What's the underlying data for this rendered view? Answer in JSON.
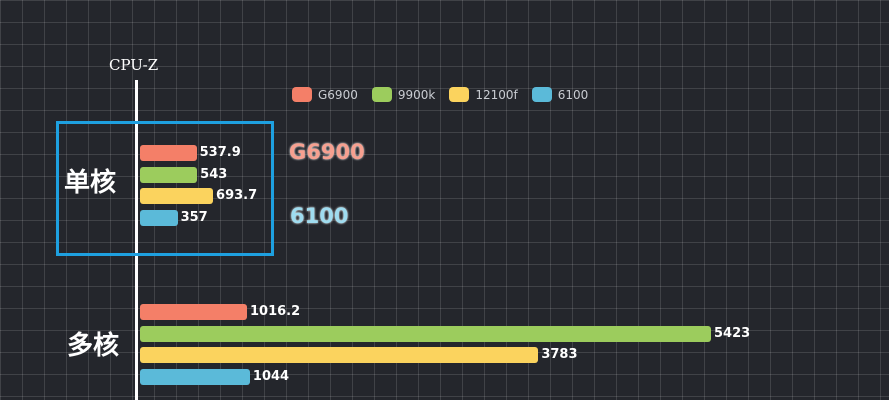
{
  "chart_data": {
    "type": "bar",
    "orientation": "horizontal",
    "axis_title": "CPU-Z",
    "categories": [
      "单核",
      "多核"
    ],
    "series": [
      {
        "name": "G6900",
        "color": "#f47f68",
        "values": [
          537.9,
          1016.2
        ],
        "labels": [
          "537.9",
          "1016.2"
        ]
      },
      {
        "name": "9900k",
        "color": "#9ccc5d",
        "values": [
          543,
          5423
        ],
        "labels": [
          "543",
          "5423"
        ]
      },
      {
        "name": "12100f",
        "color": "#fbd35e",
        "values": [
          693.7,
          3783
        ],
        "labels": [
          "693.7",
          "3783"
        ]
      },
      {
        "name": "6100",
        "color": "#5bbad9",
        "values": [
          357,
          1044
        ],
        "labels": [
          "357",
          "1044"
        ]
      }
    ],
    "annotations": [
      "G6900",
      "6100"
    ],
    "legend_position": "top",
    "grid": true
  }
}
